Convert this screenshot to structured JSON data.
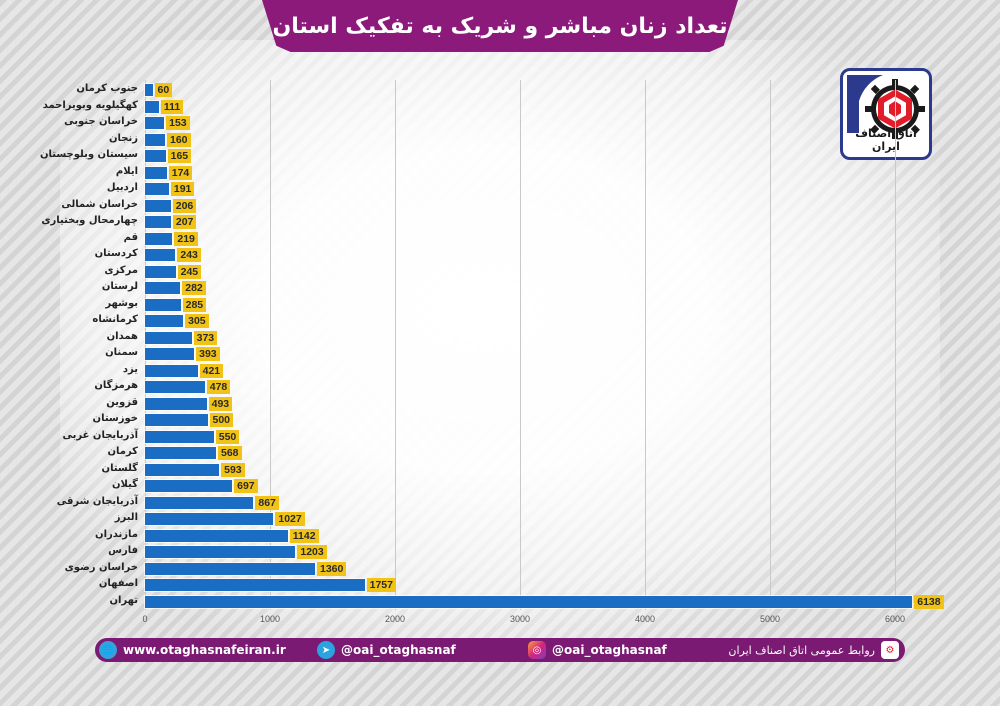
{
  "title": "تعداد زنان مباشر و شریک به تفکیک استان",
  "logo": {
    "caption": "اتاق اصناف ایران",
    "icon": "gear-logo-icon"
  },
  "colors": {
    "banner": "#8b1a7b",
    "bar": "#1a6dc2",
    "value_label": "#f2c317",
    "footer": "#7a1a73"
  },
  "chart_data": {
    "type": "bar",
    "orientation": "horizontal",
    "title": "تعداد زنان مباشر و شریک به تفکیک استان",
    "xlabel": "",
    "ylabel": "",
    "xlim": [
      0,
      6000
    ],
    "xticks": [
      0,
      1000,
      2000,
      3000,
      4000,
      5000,
      6000
    ],
    "grid": true,
    "legend": null,
    "categories": [
      "جنوب کرمان",
      "کهگیلویه وبویراحمد",
      "خراسان جنوبی",
      "زنجان",
      "سیستان وبلوچستان",
      "ایلام",
      "اردبیل",
      "خراسان شمالی",
      "چهارمحال وبختیاری",
      "قم",
      "کردستان",
      "مرکزی",
      "لرستان",
      "بوشهر",
      "کرمانشاه",
      "همدان",
      "سمنان",
      "یزد",
      "هرمزگان",
      "قزوین",
      "خوزستان",
      "آذربایجان غربی",
      "کرمان",
      "گلستان",
      "گیلان",
      "آذربایجان شرقی",
      "البرز",
      "مازندران",
      "فارس",
      "خراسان رضوی",
      "اصفهان",
      "تهران"
    ],
    "values": [
      60,
      111,
      153,
      160,
      165,
      174,
      191,
      206,
      207,
      219,
      243,
      245,
      282,
      285,
      305,
      373,
      393,
      421,
      478,
      493,
      500,
      550,
      568,
      593,
      697,
      867,
      1027,
      1142,
      1203,
      1360,
      1757,
      6138
    ]
  },
  "footer": {
    "website": "www.otaghasnafeiran.ir",
    "telegram": "@oai_otaghasnaf",
    "instagram": "@oai_otaghasnaf",
    "pr": "روابط عمومی اتاق اصناف ایران"
  }
}
